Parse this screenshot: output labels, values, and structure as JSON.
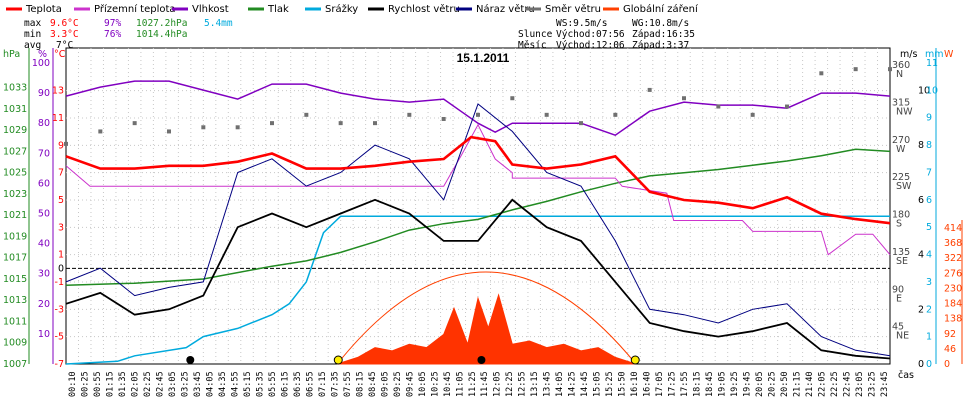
{
  "chart_data": {
    "type": "line",
    "title": "15.1.2011",
    "legend": [
      {
        "label": "Teplota",
        "color": "#ff0000"
      },
      {
        "label": "Přízemní teplota",
        "color": "#cc33cc"
      },
      {
        "label": "Vlhkost",
        "color": "#8000c0"
      },
      {
        "label": "Tlak",
        "color": "#228b22"
      },
      {
        "label": "Srážky",
        "color": "#00aadd"
      },
      {
        "label": "Rychlost větru",
        "color": "#000000"
      },
      {
        "label": "Náraz větru",
        "color": "#000080"
      },
      {
        "label": "Směr větru",
        "color": "#707070"
      },
      {
        "label": "Globální záření",
        "color": "#ff4000"
      }
    ],
    "stats": {
      "max_label": "max",
      "min_label": "min",
      "avg_label": "avg",
      "max_temp": "9.6°C",
      "max_hum": "97%",
      "max_press": "1027.2hPa",
      "max_rain": "5.4mm",
      "min_temp": "3.3°C",
      "min_hum": "76%",
      "min_press": "1014.4hPa",
      "avg_temp": "7°C"
    },
    "info": {
      "ws": "WS:9.5m/s",
      "wg": "WG:10.8m/s",
      "sun_label": "Slunce",
      "sun_rise": "Východ:07:56",
      "sun_set": "Západ:16:35",
      "moon_label": "Měsíc",
      "moon_rise": "Východ:12:06",
      "moon_set": "Západ:3:37"
    },
    "axes": {
      "hpa_unit": "hPa",
      "pct_unit": "%",
      "degc_unit": "°C",
      "ms_unit": "m/s",
      "mm_unit": "mm",
      "w_unit": "W",
      "time_label": "čas",
      "hpa_ticks": [
        "1033",
        "1031",
        "1029",
        "1027",
        "1025",
        "1023",
        "1021",
        "1019",
        "1017",
        "1015",
        "1013",
        "1011",
        "1009",
        "1007"
      ],
      "pct_ticks": [
        "100",
        "90",
        "80",
        "70",
        "60",
        "50",
        "40",
        "30",
        "20",
        "10"
      ],
      "c_ticks": [
        "13",
        "11",
        "9",
        "7",
        "5",
        "3",
        "1",
        "-1",
        "-3",
        "-5",
        "-7"
      ],
      "c_zero": "0",
      "dir_ticks": [
        "360\nN",
        "315\nNW",
        "270\nW",
        "225\nSW",
        "180\nS",
        "135\nSE",
        "90\nE",
        "45\nNE"
      ],
      "ms_ticks": [
        "10",
        "8",
        "6",
        "4",
        "2",
        "0"
      ],
      "mm_ticks": [
        "11",
        "10",
        "9",
        "8",
        "7",
        "6",
        "5",
        "4",
        "3",
        "2",
        "1",
        "0"
      ],
      "w_ticks": [
        "414",
        "368",
        "322",
        "276",
        "230",
        "184",
        "138",
        "92",
        "46",
        "0"
      ]
    },
    "x_ticks": [
      "00:10",
      "00:25",
      "00:55",
      "01:15",
      "01:35",
      "02:05",
      "02:25",
      "02:45",
      "03:05",
      "03:25",
      "03:45",
      "04:05",
      "04:35",
      "04:55",
      "05:15",
      "05:35",
      "05:55",
      "06:15",
      "06:35",
      "06:55",
      "07:15",
      "07:35",
      "07:55",
      "08:15",
      "08:45",
      "09:05",
      "09:25",
      "09:45",
      "10:05",
      "10:25",
      "10:45",
      "11:05",
      "11:25",
      "11:45",
      "12:05",
      "12:25",
      "12:55",
      "13:15",
      "13:45",
      "14:05",
      "14:25",
      "14:45",
      "15:05",
      "15:25",
      "15:50",
      "16:10",
      "16:40",
      "17:05",
      "17:25",
      "17:55",
      "18:15",
      "18:45",
      "19:05",
      "19:25",
      "19:45",
      "20:05",
      "20:25",
      "20:50",
      "21:15",
      "21:40",
      "22:05",
      "22:25",
      "22:45",
      "23:05",
      "23:25",
      "23:45"
    ],
    "series": [
      {
        "name": "Teplota",
        "unit": "°C",
        "x_hours": [
          0,
          1,
          2,
          3,
          4,
          5,
          6,
          7,
          8,
          9,
          10,
          11,
          11.8,
          12.5,
          13,
          14,
          15,
          16,
          17,
          18,
          19,
          20,
          21,
          22,
          23,
          24
        ],
        "values": [
          8.2,
          7.3,
          7.3,
          7.5,
          7.5,
          7.8,
          8.4,
          7.3,
          7.3,
          7.5,
          7.8,
          8.0,
          9.6,
          9.3,
          7.6,
          7.3,
          7.6,
          8.2,
          5.6,
          5.0,
          4.8,
          4.4,
          5.2,
          4.0,
          3.6,
          3.3
        ]
      },
      {
        "name": "Přízemní teplota",
        "unit": "°C",
        "x_hours": [
          0,
          0.7,
          1,
          5,
          5.3,
          9,
          9.2,
          11,
          11.5,
          12,
          12.5,
          13,
          13,
          16,
          16.2,
          17.5,
          17.7,
          19.7,
          20,
          22,
          22.2,
          23,
          23.5,
          24
        ],
        "values": [
          7.5,
          6,
          6,
          6,
          6,
          6,
          6,
          6,
          8.2,
          10.5,
          8,
          7,
          6.6,
          6.6,
          6,
          5.5,
          3.5,
          3.5,
          2.7,
          2.7,
          1,
          2.5,
          2.5,
          1
        ]
      },
      {
        "name": "Vlhkost",
        "unit": "%",
        "x_hours": [
          0,
          1,
          2,
          3,
          4,
          5,
          6,
          7,
          8,
          9,
          10,
          11,
          11.5,
          12,
          12.5,
          13,
          14,
          15,
          16,
          17,
          18,
          19,
          20,
          21,
          22,
          23,
          24
        ],
        "values": [
          89,
          92,
          94,
          94,
          91,
          88,
          93,
          93,
          90,
          88,
          87,
          88,
          84,
          80,
          77,
          80,
          80,
          80,
          76,
          84,
          87,
          86,
          86,
          85,
          90,
          90,
          89
        ]
      },
      {
        "name": "Tlak",
        "unit": "hPa",
        "x_hours": [
          0,
          2,
          4,
          6,
          7,
          8,
          9,
          10,
          11,
          12,
          13,
          14,
          15,
          16,
          17,
          18,
          19,
          20,
          21,
          22,
          23,
          24
        ],
        "values": [
          1014.4,
          1014.6,
          1015,
          1016.2,
          1016.7,
          1017.5,
          1018.5,
          1019.6,
          1020.2,
          1020.6,
          1021.5,
          1022.3,
          1023.2,
          1024.0,
          1024.7,
          1025.0,
          1025.3,
          1025.7,
          1026.1,
          1026.6,
          1027.2,
          1027.0
        ]
      },
      {
        "name": "Srážky",
        "unit": "mm",
        "x_hours": [
          0,
          1.5,
          2,
          3.5,
          4,
          5,
          6,
          6.5,
          7,
          7.5,
          8,
          9,
          10,
          11,
          12,
          13,
          14,
          15,
          16,
          17,
          18,
          19,
          20,
          21,
          22,
          23,
          24
        ],
        "values": [
          0,
          0.1,
          0.3,
          0.6,
          1.0,
          1.3,
          1.8,
          2.2,
          3.0,
          4.8,
          5.4,
          5.4,
          5.4,
          5.4,
          5.4,
          5.4,
          5.4,
          5.4,
          5.4,
          5.4,
          5.4,
          5.4,
          5.4,
          5.4,
          5.4,
          5.4,
          5.4
        ]
      },
      {
        "name": "Rychlost větru",
        "unit": "m/s",
        "x_hours": [
          0,
          1,
          2,
          3,
          4,
          5,
          6,
          7,
          8,
          9,
          10,
          11,
          12,
          13,
          14,
          15,
          16,
          17,
          18,
          19,
          20,
          21,
          22,
          23,
          24
        ],
        "values": [
          2.2,
          2.6,
          1.8,
          2.0,
          2.5,
          5.0,
          5.5,
          5.0,
          5.5,
          6.0,
          5.5,
          4.5,
          4.5,
          6.0,
          5.0,
          4.5,
          3.0,
          1.5,
          1.2,
          1.0,
          1.2,
          1.5,
          0.5,
          0.3,
          0.2
        ]
      },
      {
        "name": "Náraz větru",
        "unit": "m/s",
        "x_hours": [
          0,
          1,
          2,
          3,
          4,
          5,
          6,
          7,
          8,
          9,
          10,
          11,
          12,
          13,
          14,
          15,
          16,
          17,
          18,
          19,
          20,
          21,
          22,
          23,
          24
        ],
        "values": [
          3.0,
          3.5,
          2.5,
          2.8,
          3.0,
          7.0,
          7.5,
          6.5,
          7.0,
          8.0,
          7.5,
          6.0,
          9.5,
          8.5,
          7.0,
          6.5,
          4.5,
          2.0,
          1.8,
          1.5,
          2.0,
          2.2,
          1.0,
          0.5,
          0.3
        ]
      },
      {
        "name": "Globální záření",
        "unit": "W",
        "x_hours": [
          7.9,
          8.5,
          9,
          9.5,
          10,
          10.5,
          11,
          11.3,
          11.7,
          12,
          12.3,
          12.6,
          13,
          13.5,
          14,
          14.5,
          15,
          15.5,
          16,
          16.6
        ],
        "values": [
          0,
          20,
          50,
          40,
          60,
          50,
          90,
          170,
          60,
          200,
          110,
          210,
          60,
          70,
          50,
          60,
          40,
          50,
          20,
          0
        ]
      },
      {
        "name": "Směr větru",
        "unit": "°",
        "x_hours": [
          0,
          1,
          2,
          3,
          4,
          5,
          6,
          7,
          8,
          9,
          10,
          11,
          12,
          13,
          14,
          15,
          16,
          17,
          18,
          19,
          20,
          21,
          22,
          23,
          24
        ],
        "values": [
          265,
          280,
          290,
          280,
          285,
          285,
          290,
          300,
          290,
          290,
          300,
          295,
          300,
          320,
          300,
          290,
          300,
          330,
          320,
          310,
          300,
          310,
          350,
          355,
          355
        ]
      }
    ]
  }
}
